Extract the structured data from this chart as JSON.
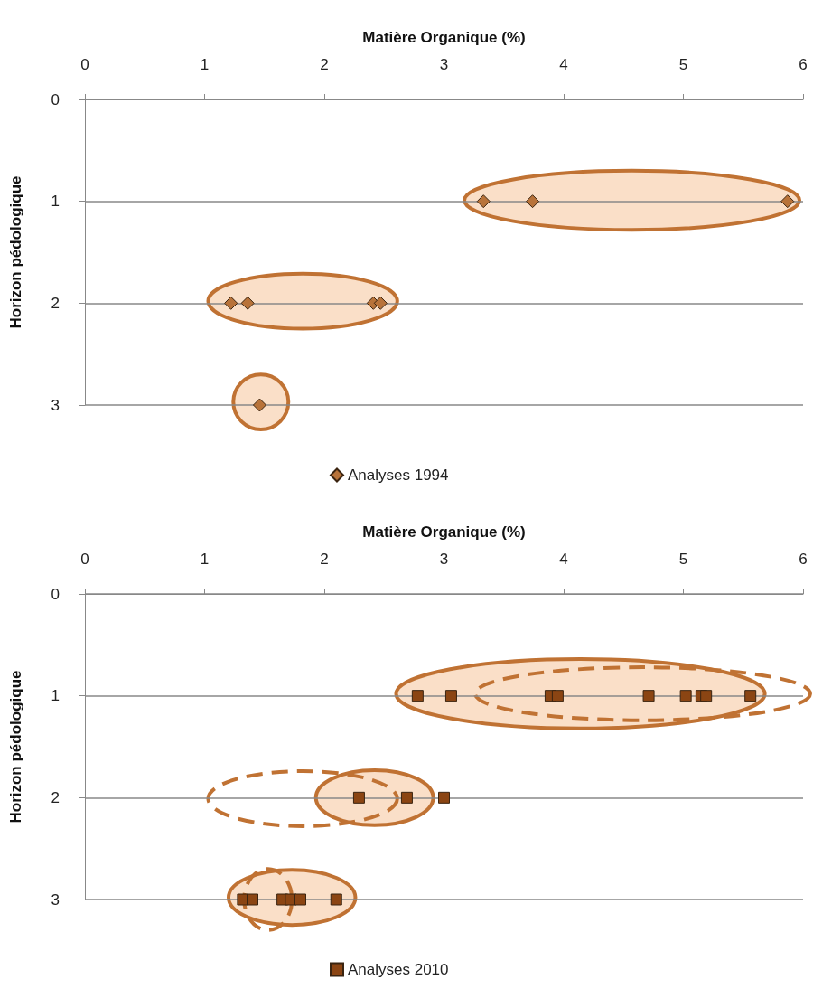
{
  "chart_data": [
    {
      "type": "scatter",
      "xlabel": "Matière Organique (%)",
      "ylabel": "Horizon pédologique",
      "xlim": [
        0,
        6
      ],
      "xticks": [
        0,
        1,
        2,
        3,
        4,
        5,
        6
      ],
      "ylim": [
        3,
        0
      ],
      "yticks": [
        0,
        1,
        2,
        3
      ],
      "grid": "y",
      "legend": "bottom",
      "marker": "diamond",
      "series": [
        {
          "name": "Analyses 1994",
          "color": "#b8733a",
          "x": [
            3.33,
            3.74,
            5.87,
            1.22,
            1.36,
            2.41,
            2.47,
            1.46
          ],
          "values": [
            1,
            1,
            1,
            2,
            2,
            2,
            2,
            3
          ]
        }
      ]
    },
    {
      "type": "scatter",
      "xlabel": "Matière Organique (%)",
      "ylabel": "Horizon pédologique",
      "xlim": [
        0,
        6
      ],
      "xticks": [
        0,
        1,
        2,
        3,
        4,
        5,
        6
      ],
      "ylim": [
        3,
        0
      ],
      "yticks": [
        0,
        1,
        2,
        3
      ],
      "grid": "y",
      "legend": "bottom",
      "marker": "square",
      "series": [
        {
          "name": "Analyses 2010",
          "color": "#8b4513",
          "x": [
            2.78,
            3.06,
            3.89,
            3.95,
            4.71,
            5.02,
            5.15,
            5.19,
            5.56,
            2.29,
            2.69,
            3.0,
            1.32,
            1.4,
            1.65,
            1.72,
            1.8,
            2.1
          ],
          "values": [
            1,
            1,
            1,
            1,
            1,
            1,
            1,
            1,
            1,
            2,
            2,
            2,
            3,
            3,
            3,
            3,
            3,
            3
          ]
        }
      ]
    }
  ]
}
